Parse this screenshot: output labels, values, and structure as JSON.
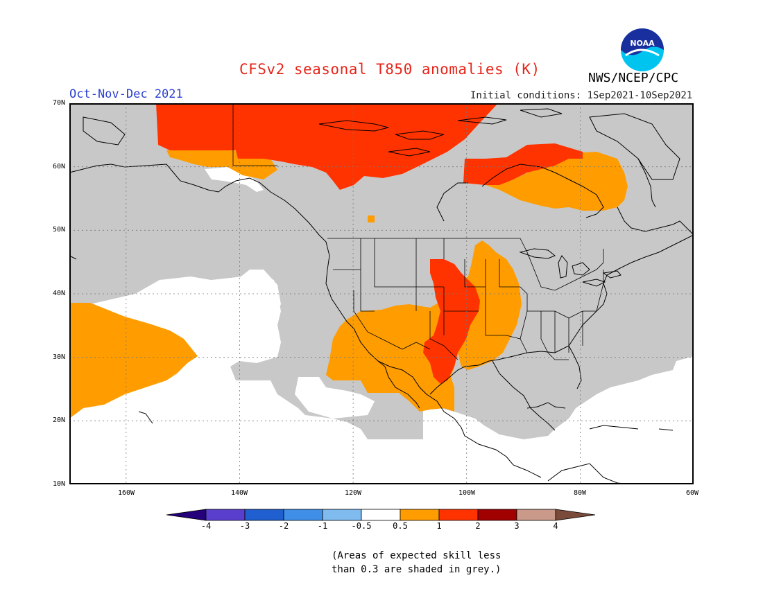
{
  "title": "CFSv2 seasonal T850 anomalies (K)",
  "period": "Oct-Nov-Dec 2021",
  "initial_conditions": "Initial conditions: 1Sep2021-10Sep2021",
  "agency": "NWS/NCEP/CPC",
  "logo_text": "NOAA",
  "lat_labels": [
    "70N",
    "60N",
    "50N",
    "40N",
    "30N",
    "20N",
    "10N"
  ],
  "lon_labels": [
    "160W",
    "140W",
    "120W",
    "100W",
    "80W",
    "60W"
  ],
  "colorbar": {
    "labels": [
      "-4",
      "-3",
      "-2",
      "-1",
      "-0.5",
      "0.5",
      "1",
      "2",
      "3",
      "4"
    ],
    "colors": [
      "#24007a",
      "#5a3fcf",
      "#1f5fcf",
      "#3f8fe8",
      "#7fbbef",
      "#ffffff",
      "#ff9c00",
      "#ff3300",
      "#a00000",
      "#c99a8a",
      "#7a4a3a"
    ]
  },
  "anomaly_colors": {
    "grey": "#c8c8c8",
    "orange": "#ff9c00",
    "red": "#ff3300"
  },
  "note_line1": "(Areas of expected skill less",
  "note_line2": "than 0.3 are shaded in grey.)"
}
